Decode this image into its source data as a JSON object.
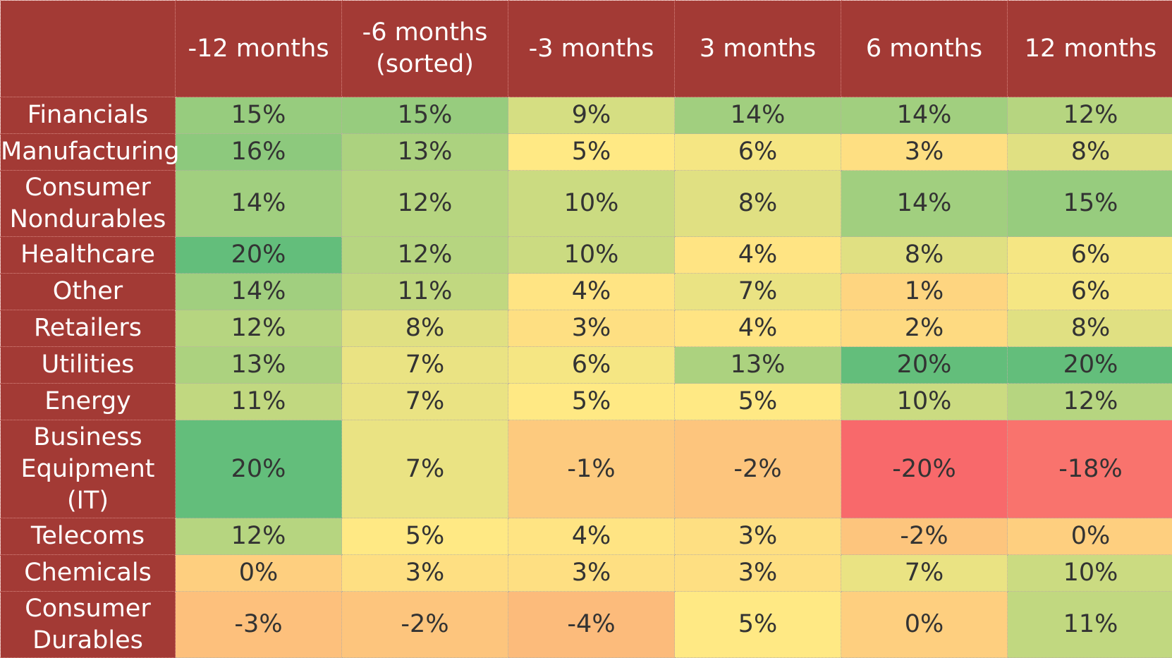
{
  "chart_data": {
    "type": "table",
    "columns": [
      "-12 months",
      "-6 months\n(sorted)",
      "-3 months",
      "3 months",
      "6 months",
      "12 months"
    ],
    "rows": [
      {
        "label": "Financials",
        "values": [
          "15%",
          "15%",
          "9%",
          "14%",
          "14%",
          "12%"
        ]
      },
      {
        "label": "Manufacturing",
        "values": [
          "16%",
          "13%",
          "5%",
          "6%",
          "3%",
          "8%"
        ]
      },
      {
        "label": "Consumer Nondurables",
        "values": [
          "14%",
          "12%",
          "10%",
          "8%",
          "14%",
          "15%"
        ]
      },
      {
        "label": "Healthcare",
        "values": [
          "20%",
          "12%",
          "10%",
          "4%",
          "8%",
          "6%"
        ]
      },
      {
        "label": "Other",
        "values": [
          "14%",
          "11%",
          "4%",
          "7%",
          "1%",
          "6%"
        ]
      },
      {
        "label": "Retailers",
        "values": [
          "12%",
          "8%",
          "3%",
          "4%",
          "2%",
          "8%"
        ]
      },
      {
        "label": "Utilities",
        "values": [
          "13%",
          "7%",
          "6%",
          "13%",
          "20%",
          "20%"
        ]
      },
      {
        "label": "Energy",
        "values": [
          "11%",
          "7%",
          "5%",
          "5%",
          "10%",
          "12%"
        ]
      },
      {
        "label": "Business Equipment (IT)",
        "values": [
          "20%",
          "7%",
          "-1%",
          "-2%",
          "-20%",
          "-18%"
        ]
      },
      {
        "label": "Telecoms",
        "values": [
          "12%",
          "5%",
          "4%",
          "3%",
          "-2%",
          "0%"
        ]
      },
      {
        "label": "Chemicals",
        "values": [
          "0%",
          "3%",
          "3%",
          "3%",
          "7%",
          "10%"
        ]
      },
      {
        "label": "Consumer Durables",
        "values": [
          "-3%",
          "-2%",
          "-4%",
          "5%",
          "0%",
          "11%"
        ]
      }
    ],
    "color_scale": {
      "low": "#f8696b",
      "mid": "#ffe984",
      "high": "#63be7b",
      "min": -20,
      "max": 20
    }
  },
  "colors": {
    "header_bg": "#a33a35",
    "header_text": "#ffffff"
  }
}
